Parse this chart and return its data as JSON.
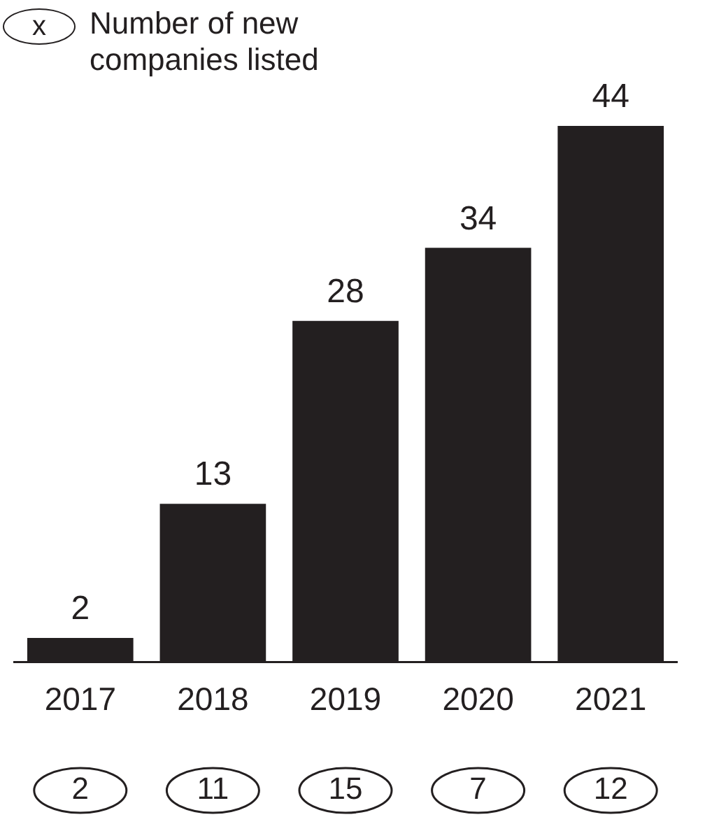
{
  "chart_data": {
    "type": "bar",
    "categories": [
      "2017",
      "2018",
      "2019",
      "2020",
      "2021"
    ],
    "series": [
      {
        "color": "#231f20",
        "values": [
          2,
          13,
          28,
          34,
          44
        ]
      }
    ],
    "data_labels": true,
    "annotations": [
      "x",
      "Number of new companies listed",
      "2",
      "11",
      "15",
      "7",
      "12"
    ]
  }
}
